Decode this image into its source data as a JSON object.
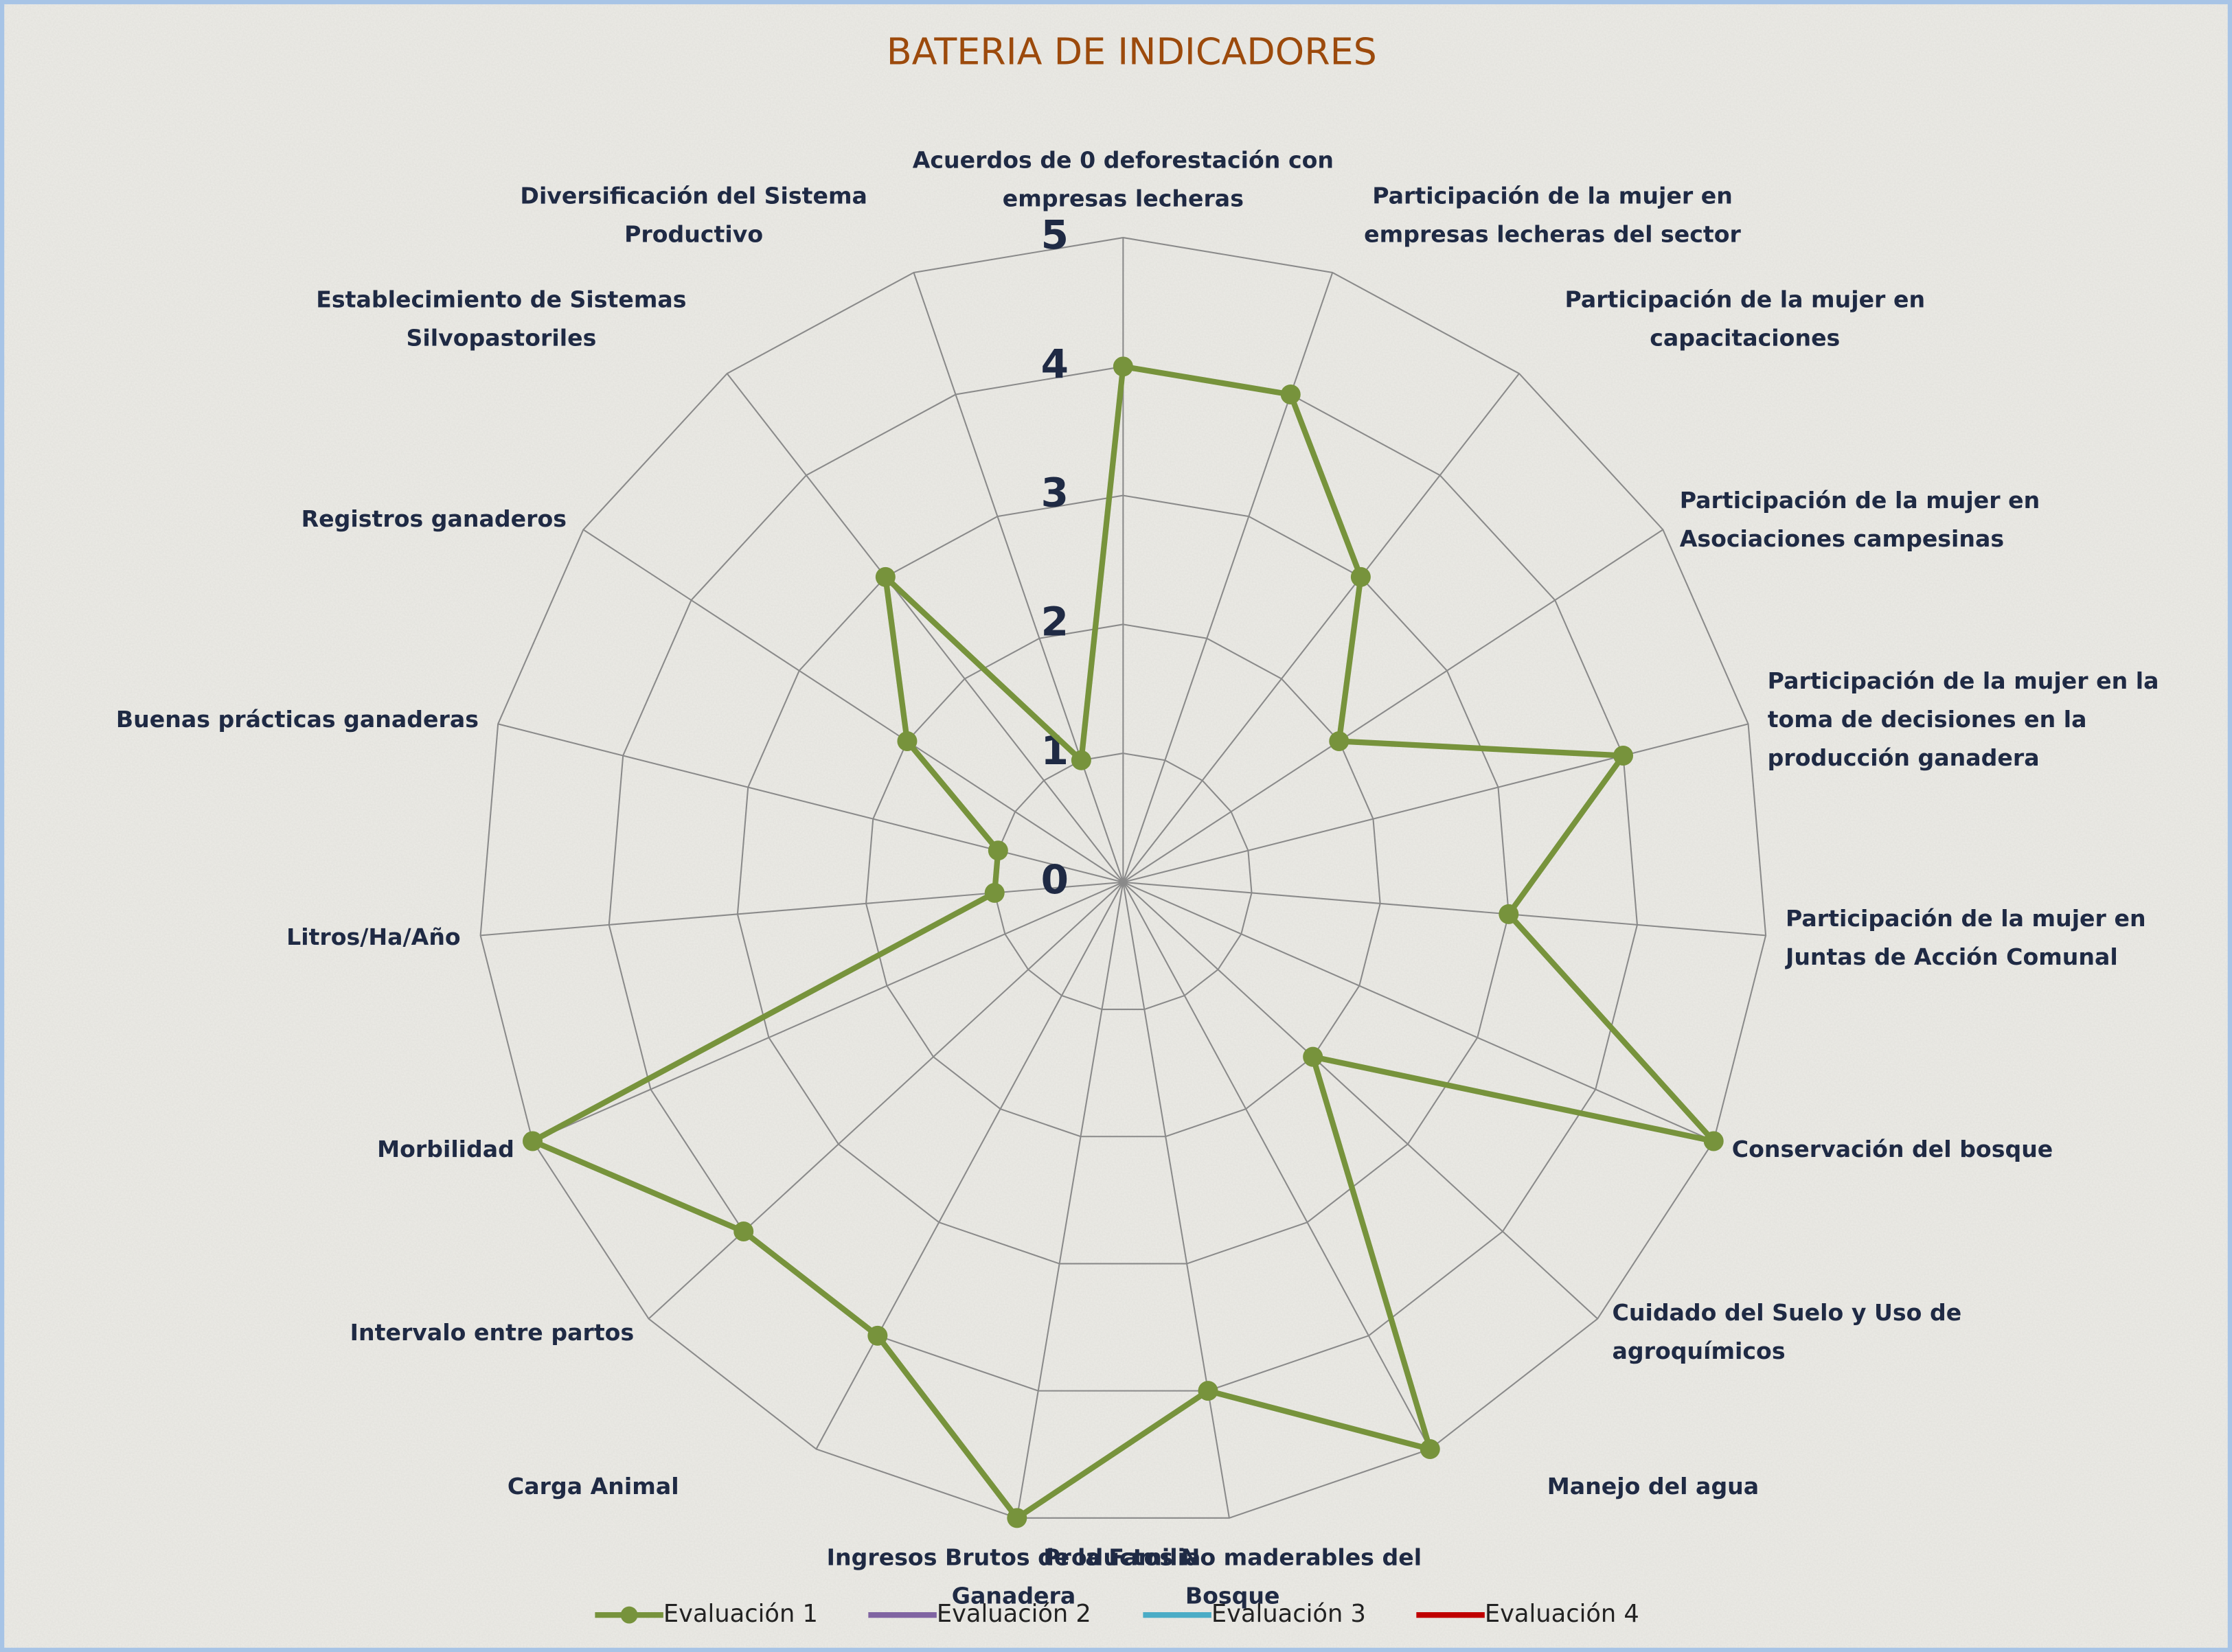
{
  "chart_data": {
    "type": "radar",
    "title": "BATERIA DE INDICADORES",
    "categories": [
      "Acuerdos de 0 deforestación con empresas lecheras",
      "Participación de la mujer en empresas lecheras del sector",
      "Participación de la mujer en capacitaciones",
      "Participación de la mujer en Asociaciones campesinas",
      "Participación de la mujer en la toma de decisiones en la producción ganadera",
      "Participación de la mujer en Juntas de Acción Comunal",
      "Conservación del bosque",
      "Cuidado del Suelo y Uso de agroquímicos",
      "Manejo del agua",
      "Productos No maderables del Bosque",
      "Ingresos Brutos de la Familia Ganadera",
      "Carga Animal",
      "Intervalo entre partos",
      "Morbilidad",
      "Litros/Ha/Año",
      "Buenas prácticas ganaderas",
      "Registros ganaderos",
      "Establecimiento de Sistemas Silvopastoriles",
      "Diversificación del Sistema Productivo"
    ],
    "series": [
      {
        "name": "Evaluación 1",
        "color": "#77933c",
        "values": [
          4,
          4,
          3,
          2,
          4,
          3,
          5,
          2,
          5,
          4,
          5,
          4,
          4,
          5,
          1,
          1,
          2,
          3,
          1
        ]
      },
      {
        "name": "Evaluación 2",
        "color": "#8064a2",
        "values": [
          null,
          null,
          null,
          null,
          null,
          null,
          null,
          null,
          null,
          null,
          null,
          null,
          null,
          null,
          null,
          null,
          null,
          null,
          null
        ]
      },
      {
        "name": "Evaluación 3",
        "color": "#4bacc6",
        "values": [
          null,
          null,
          null,
          null,
          null,
          null,
          null,
          null,
          null,
          null,
          null,
          null,
          null,
          null,
          null,
          null,
          null,
          null,
          null
        ]
      },
      {
        "name": "Evaluación 4",
        "color": "#c00000",
        "values": [
          null,
          null,
          null,
          null,
          null,
          null,
          null,
          null,
          null,
          null,
          null,
          null,
          null,
          null,
          null,
          null,
          null,
          null,
          null
        ]
      }
    ],
    "rlim": [
      0,
      5
    ],
    "rticks": [
      0,
      1,
      2,
      3,
      4,
      5
    ],
    "grid": true,
    "legend": "bottom"
  }
}
